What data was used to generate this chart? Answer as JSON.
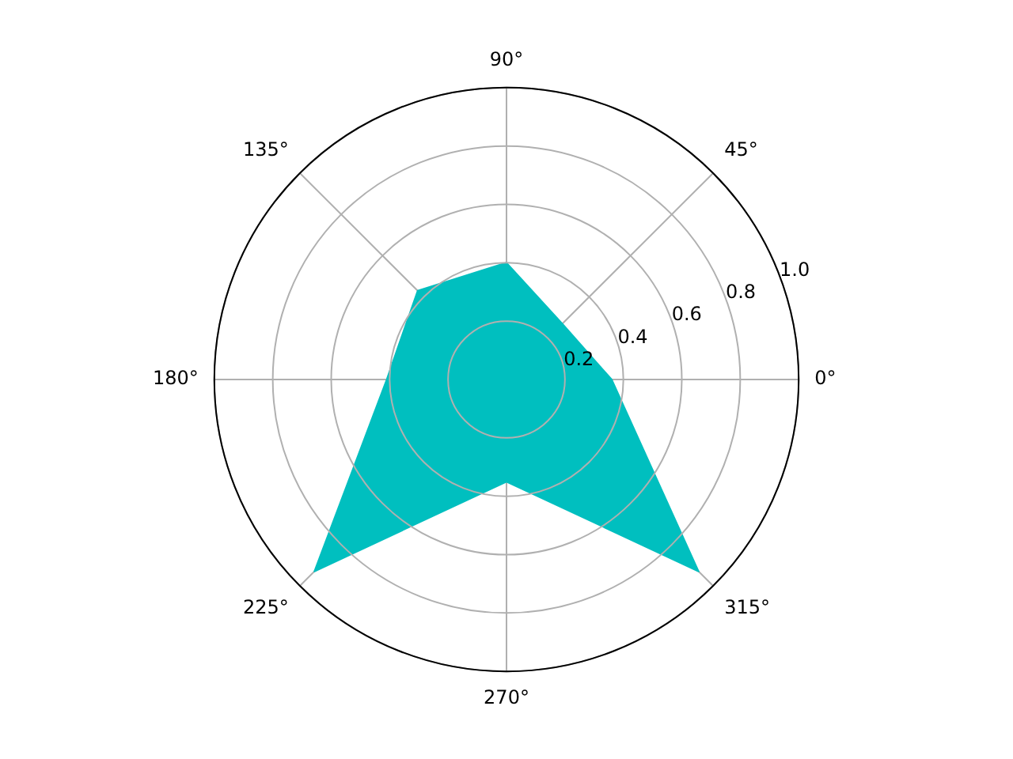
{
  "chart_data": {
    "type": "radar",
    "categories": [
      "90°",
      "45°",
      "0°",
      "315°",
      "270°",
      "225°",
      "180°",
      "135°"
    ],
    "series": [
      {
        "type": "area",
        "color": "#00bfbf",
        "values": [
          0.4,
          0.27,
          0.36,
          0.93,
          0.35,
          0.93,
          0.41,
          0.43
        ]
      }
    ],
    "ylim": [
      0,
      1
    ],
    "yticks": [
      0.2,
      0.4,
      0.6,
      0.8,
      {
        "value": 1,
        "label": "1.0"
      }
    ],
    "grid": true,
    "marker": "none",
    "legend": false
  }
}
